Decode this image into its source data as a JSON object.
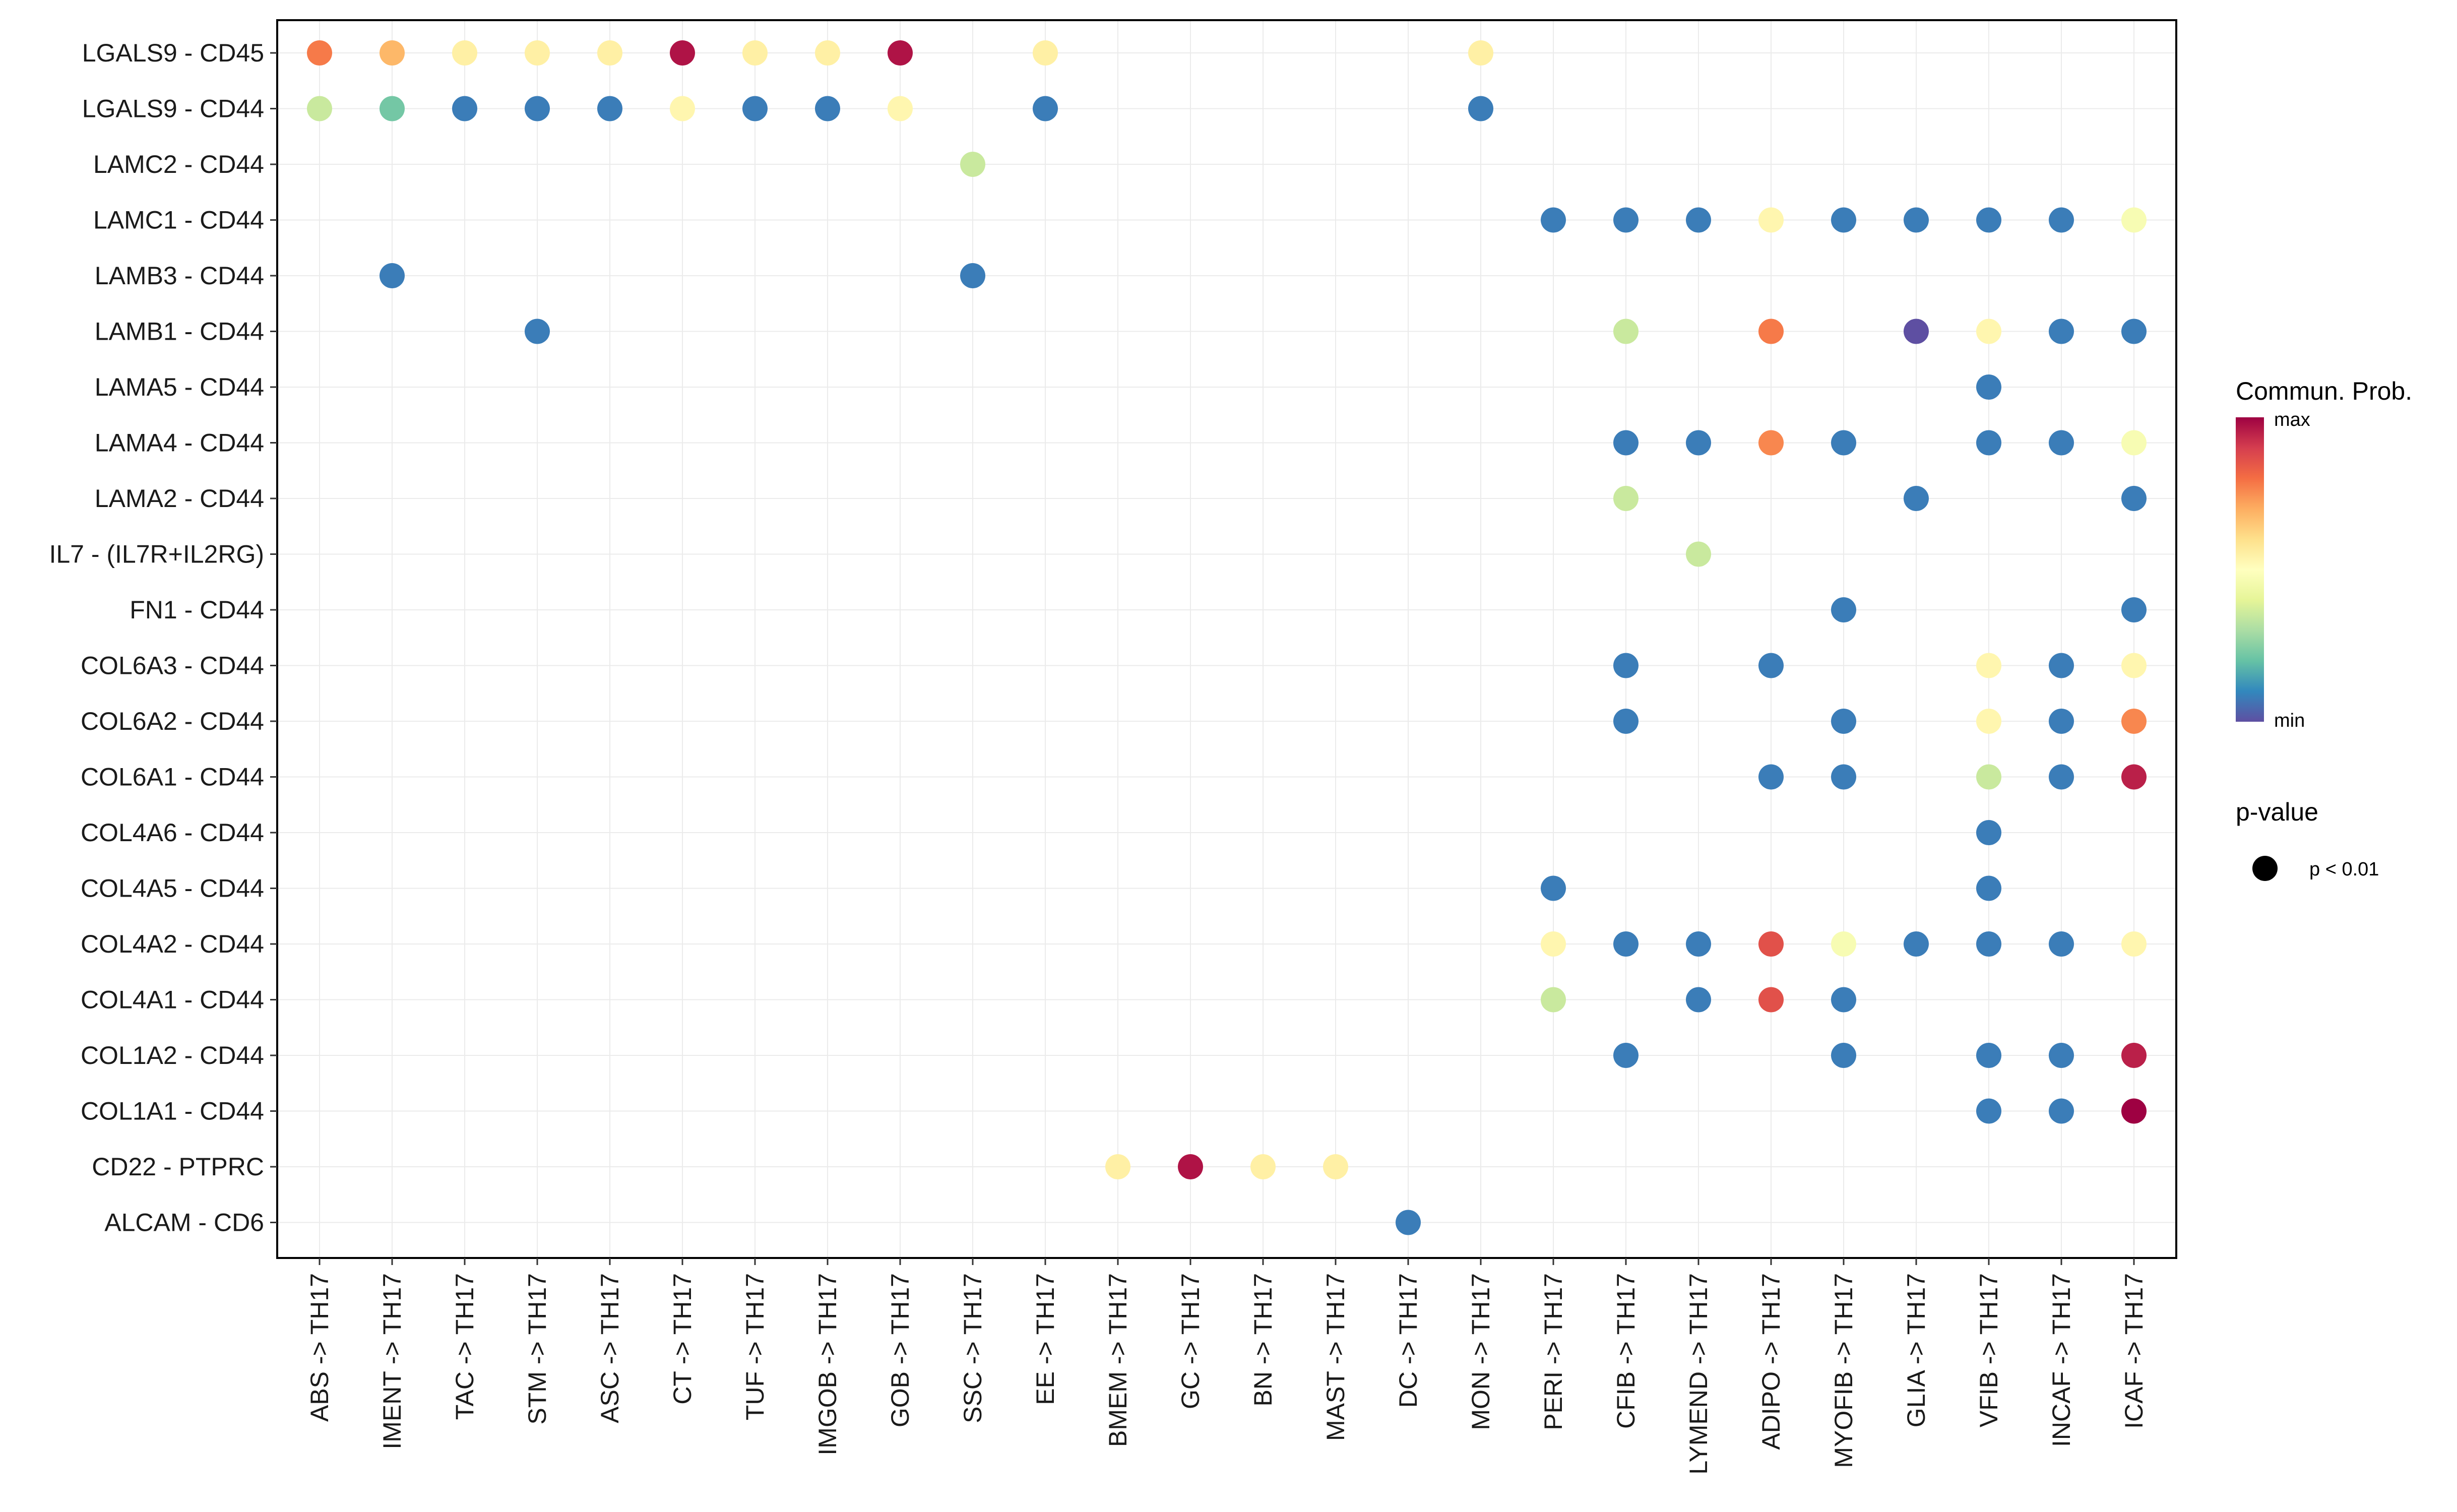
{
  "chart_data": {
    "type": "dot",
    "title": "",
    "xlabel": "",
    "ylabel": "",
    "x_categories": [
      "ABS -> TH17",
      "IMENT -> TH17",
      "TAC -> TH17",
      "STM -> TH17",
      "ASC -> TH17",
      "CT -> TH17",
      "TUF -> TH17",
      "IMGOB -> TH17",
      "GOB -> TH17",
      "SSC -> TH17",
      "EE -> TH17",
      "BMEM -> TH17",
      "GC -> TH17",
      "BN -> TH17",
      "MAST -> TH17",
      "DC -> TH17",
      "MON -> TH17",
      "PERI -> TH17",
      "CFIB -> TH17",
      "LYMEND -> TH17",
      "ADIPO -> TH17",
      "MYOFIB -> TH17",
      "GLIA -> TH17",
      "VFIB -> TH17",
      "INCAF -> TH17",
      "ICAF -> TH17"
    ],
    "y_categories": [
      "LGALS9 - CD45",
      "LGALS9 - CD44",
      "LAMC2 - CD44",
      "LAMC1 - CD44",
      "LAMB3 - CD44",
      "LAMB1 - CD44",
      "LAMA5 - CD44",
      "LAMA4 - CD44",
      "LAMA2 - CD44",
      "IL7 - (IL7R+IL2RG)",
      "FN1 - CD44",
      "COL6A3 - CD44",
      "COL6A2 - CD44",
      "COL6A1 - CD44",
      "COL4A6 - CD44",
      "COL4A5 - CD44",
      "COL4A2 - CD44",
      "COL4A1 - CD44",
      "COL1A2 - CD44",
      "COL1A1 - CD44",
      "CD22 - PTPRC",
      "ALCAM - CD6"
    ],
    "value_scale": "normalized 0 (min) to 1 (max) communication probability",
    "points": [
      {
        "x": "ABS -> TH17",
        "y": "LGALS9 - CD45",
        "prob": 0.78
      },
      {
        "x": "IMENT -> TH17",
        "y": "LGALS9 - CD45",
        "prob": 0.68
      },
      {
        "x": "TAC -> TH17",
        "y": "LGALS9 - CD45",
        "prob": 0.55
      },
      {
        "x": "STM -> TH17",
        "y": "LGALS9 - CD45",
        "prob": 0.55
      },
      {
        "x": "ASC -> TH17",
        "y": "LGALS9 - CD45",
        "prob": 0.55
      },
      {
        "x": "CT -> TH17",
        "y": "LGALS9 - CD45",
        "prob": 0.97
      },
      {
        "x": "TUF -> TH17",
        "y": "LGALS9 - CD45",
        "prob": 0.55
      },
      {
        "x": "IMGOB -> TH17",
        "y": "LGALS9 - CD45",
        "prob": 0.55
      },
      {
        "x": "GOB -> TH17",
        "y": "LGALS9 - CD45",
        "prob": 0.97
      },
      {
        "x": "EE -> TH17",
        "y": "LGALS9 - CD45",
        "prob": 0.55
      },
      {
        "x": "MON -> TH17",
        "y": "LGALS9 - CD45",
        "prob": 0.55
      },
      {
        "x": "ABS -> TH17",
        "y": "LGALS9 - CD44",
        "prob": 0.35
      },
      {
        "x": "IMENT -> TH17",
        "y": "LGALS9 - CD44",
        "prob": 0.22
      },
      {
        "x": "TAC -> TH17",
        "y": "LGALS9 - CD44",
        "prob": 0.08
      },
      {
        "x": "STM -> TH17",
        "y": "LGALS9 - CD44",
        "prob": 0.08
      },
      {
        "x": "ASC -> TH17",
        "y": "LGALS9 - CD44",
        "prob": 0.08
      },
      {
        "x": "CT -> TH17",
        "y": "LGALS9 - CD44",
        "prob": 0.53
      },
      {
        "x": "TUF -> TH17",
        "y": "LGALS9 - CD44",
        "prob": 0.08
      },
      {
        "x": "IMGOB -> TH17",
        "y": "LGALS9 - CD44",
        "prob": 0.08
      },
      {
        "x": "GOB -> TH17",
        "y": "LGALS9 - CD44",
        "prob": 0.53
      },
      {
        "x": "EE -> TH17",
        "y": "LGALS9 - CD44",
        "prob": 0.08
      },
      {
        "x": "MON -> TH17",
        "y": "LGALS9 - CD44",
        "prob": 0.08
      },
      {
        "x": "SSC -> TH17",
        "y": "LAMC2 - CD44",
        "prob": 0.35
      },
      {
        "x": "PERI -> TH17",
        "y": "LAMC1 - CD44",
        "prob": 0.08
      },
      {
        "x": "CFIB -> TH17",
        "y": "LAMC1 - CD44",
        "prob": 0.08
      },
      {
        "x": "LYMEND -> TH17",
        "y": "LAMC1 - CD44",
        "prob": 0.08
      },
      {
        "x": "ADIPO -> TH17",
        "y": "LAMC1 - CD44",
        "prob": 0.53
      },
      {
        "x": "MYOFIB -> TH17",
        "y": "LAMC1 - CD44",
        "prob": 0.08
      },
      {
        "x": "GLIA -> TH17",
        "y": "LAMC1 - CD44",
        "prob": 0.08
      },
      {
        "x": "VFIB -> TH17",
        "y": "LAMC1 - CD44",
        "prob": 0.08
      },
      {
        "x": "INCAF -> TH17",
        "y": "LAMC1 - CD44",
        "prob": 0.08
      },
      {
        "x": "ICAF -> TH17",
        "y": "LAMC1 - CD44",
        "prob": 0.47
      },
      {
        "x": "IMENT -> TH17",
        "y": "LAMB3 - CD44",
        "prob": 0.08
      },
      {
        "x": "SSC -> TH17",
        "y": "LAMB3 - CD44",
        "prob": 0.08
      },
      {
        "x": "STM -> TH17",
        "y": "LAMB1 - CD44",
        "prob": 0.08
      },
      {
        "x": "CFIB -> TH17",
        "y": "LAMB1 - CD44",
        "prob": 0.35
      },
      {
        "x": "ADIPO -> TH17",
        "y": "LAMB1 - CD44",
        "prob": 0.78
      },
      {
        "x": "GLIA -> TH17",
        "y": "LAMB1 - CD44",
        "prob": 0.0
      },
      {
        "x": "VFIB -> TH17",
        "y": "LAMB1 - CD44",
        "prob": 0.53
      },
      {
        "x": "INCAF -> TH17",
        "y": "LAMB1 - CD44",
        "prob": 0.08
      },
      {
        "x": "ICAF -> TH17",
        "y": "LAMB1 - CD44",
        "prob": 0.08
      },
      {
        "x": "VFIB -> TH17",
        "y": "LAMA5 - CD44",
        "prob": 0.08
      },
      {
        "x": "CFIB -> TH17",
        "y": "LAMA4 - CD44",
        "prob": 0.08
      },
      {
        "x": "LYMEND -> TH17",
        "y": "LAMA4 - CD44",
        "prob": 0.08
      },
      {
        "x": "ADIPO -> TH17",
        "y": "LAMA4 - CD44",
        "prob": 0.76
      },
      {
        "x": "MYOFIB -> TH17",
        "y": "LAMA4 - CD44",
        "prob": 0.08
      },
      {
        "x": "VFIB -> TH17",
        "y": "LAMA4 - CD44",
        "prob": 0.08
      },
      {
        "x": "INCAF -> TH17",
        "y": "LAMA4 - CD44",
        "prob": 0.08
      },
      {
        "x": "ICAF -> TH17",
        "y": "LAMA4 - CD44",
        "prob": 0.47
      },
      {
        "x": "CFIB -> TH17",
        "y": "LAMA2 - CD44",
        "prob": 0.35
      },
      {
        "x": "GLIA -> TH17",
        "y": "LAMA2 - CD44",
        "prob": 0.08
      },
      {
        "x": "ICAF -> TH17",
        "y": "LAMA2 - CD44",
        "prob": 0.08
      },
      {
        "x": "LYMEND -> TH17",
        "y": "IL7 - (IL7R+IL2RG)",
        "prob": 0.35
      },
      {
        "x": "MYOFIB -> TH17",
        "y": "FN1 - CD44",
        "prob": 0.08
      },
      {
        "x": "ICAF -> TH17",
        "y": "FN1 - CD44",
        "prob": 0.08
      },
      {
        "x": "CFIB -> TH17",
        "y": "COL6A3 - CD44",
        "prob": 0.08
      },
      {
        "x": "ADIPO -> TH17",
        "y": "COL6A3 - CD44",
        "prob": 0.08
      },
      {
        "x": "VFIB -> TH17",
        "y": "COL6A3 - CD44",
        "prob": 0.53
      },
      {
        "x": "INCAF -> TH17",
        "y": "COL6A3 - CD44",
        "prob": 0.08
      },
      {
        "x": "ICAF -> TH17",
        "y": "COL6A3 - CD44",
        "prob": 0.53
      },
      {
        "x": "CFIB -> TH17",
        "y": "COL6A2 - CD44",
        "prob": 0.08
      },
      {
        "x": "MYOFIB -> TH17",
        "y": "COL6A2 - CD44",
        "prob": 0.08
      },
      {
        "x": "VFIB -> TH17",
        "y": "COL6A2 - CD44",
        "prob": 0.53
      },
      {
        "x": "INCAF -> TH17",
        "y": "COL6A2 - CD44",
        "prob": 0.08
      },
      {
        "x": "ICAF -> TH17",
        "y": "COL6A2 - CD44",
        "prob": 0.76
      },
      {
        "x": "ADIPO -> TH17",
        "y": "COL6A1 - CD44",
        "prob": 0.08
      },
      {
        "x": "MYOFIB -> TH17",
        "y": "COL6A1 - CD44",
        "prob": 0.08
      },
      {
        "x": "VFIB -> TH17",
        "y": "COL6A1 - CD44",
        "prob": 0.35
      },
      {
        "x": "INCAF -> TH17",
        "y": "COL6A1 - CD44",
        "prob": 0.08
      },
      {
        "x": "ICAF -> TH17",
        "y": "COL6A1 - CD44",
        "prob": 0.95
      },
      {
        "x": "VFIB -> TH17",
        "y": "COL4A6 - CD44",
        "prob": 0.08
      },
      {
        "x": "PERI -> TH17",
        "y": "COL4A5 - CD44",
        "prob": 0.08
      },
      {
        "x": "VFIB -> TH17",
        "y": "COL4A5 - CD44",
        "prob": 0.08
      },
      {
        "x": "PERI -> TH17",
        "y": "COL4A2 - CD44",
        "prob": 0.53
      },
      {
        "x": "CFIB -> TH17",
        "y": "COL4A2 - CD44",
        "prob": 0.08
      },
      {
        "x": "LYMEND -> TH17",
        "y": "COL4A2 - CD44",
        "prob": 0.08
      },
      {
        "x": "ADIPO -> TH17",
        "y": "COL4A2 - CD44",
        "prob": 0.86
      },
      {
        "x": "MYOFIB -> TH17",
        "y": "COL4A2 - CD44",
        "prob": 0.47
      },
      {
        "x": "GLIA -> TH17",
        "y": "COL4A2 - CD44",
        "prob": 0.08
      },
      {
        "x": "VFIB -> TH17",
        "y": "COL4A2 - CD44",
        "prob": 0.08
      },
      {
        "x": "INCAF -> TH17",
        "y": "COL4A2 - CD44",
        "prob": 0.08
      },
      {
        "x": "ICAF -> TH17",
        "y": "COL4A2 - CD44",
        "prob": 0.53
      },
      {
        "x": "PERI -> TH17",
        "y": "COL4A1 - CD44",
        "prob": 0.35
      },
      {
        "x": "LYMEND -> TH17",
        "y": "COL4A1 - CD44",
        "prob": 0.08
      },
      {
        "x": "ADIPO -> TH17",
        "y": "COL4A1 - CD44",
        "prob": 0.86
      },
      {
        "x": "MYOFIB -> TH17",
        "y": "COL4A1 - CD44",
        "prob": 0.08
      },
      {
        "x": "CFIB -> TH17",
        "y": "COL1A2 - CD44",
        "prob": 0.08
      },
      {
        "x": "MYOFIB -> TH17",
        "y": "COL1A2 - CD44",
        "prob": 0.08
      },
      {
        "x": "VFIB -> TH17",
        "y": "COL1A2 - CD44",
        "prob": 0.08
      },
      {
        "x": "INCAF -> TH17",
        "y": "COL1A2 - CD44",
        "prob": 0.08
      },
      {
        "x": "ICAF -> TH17",
        "y": "COL1A2 - CD44",
        "prob": 0.95
      },
      {
        "x": "VFIB -> TH17",
        "y": "COL1A1 - CD44",
        "prob": 0.08
      },
      {
        "x": "INCAF -> TH17",
        "y": "COL1A1 - CD44",
        "prob": 0.08
      },
      {
        "x": "ICAF -> TH17",
        "y": "COL1A1 - CD44",
        "prob": 1.0
      },
      {
        "x": "BMEM -> TH17",
        "y": "CD22 - PTPRC",
        "prob": 0.55
      },
      {
        "x": "GC -> TH17",
        "y": "CD22 - PTPRC",
        "prob": 0.97
      },
      {
        "x": "BN -> TH17",
        "y": "CD22 - PTPRC",
        "prob": 0.55
      },
      {
        "x": "MAST -> TH17",
        "y": "CD22 - PTPRC",
        "prob": 0.55
      },
      {
        "x": "DC -> TH17",
        "y": "ALCAM - CD6",
        "prob": 0.08
      }
    ],
    "legend": {
      "color_title": "Commun. Prob.",
      "color_max_label": "max",
      "color_min_label": "min",
      "colors": [
        "#5E4FA2",
        "#3288BD",
        "#66C2A5",
        "#ABDDA4",
        "#E6F598",
        "#FFFFBF",
        "#FEE08B",
        "#FDAE61",
        "#F46D43",
        "#D53E4F",
        "#9E0142"
      ],
      "size_title": "p-value",
      "size_label": "p < 0.01"
    }
  }
}
